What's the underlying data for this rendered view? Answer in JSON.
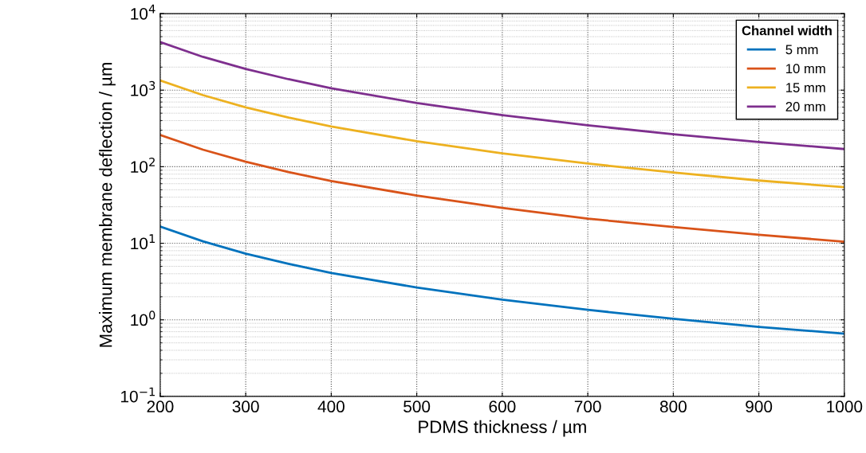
{
  "chart_data": {
    "type": "line",
    "xlabel": "PDMS thickness / µm",
    "ylabel": "Maximum membrane deflection / µm",
    "legend_title": "Channel width",
    "legend": "top right",
    "log": "y",
    "grid": true,
    "line_style": "solid",
    "x": [
      200,
      250,
      300,
      350,
      400,
      500,
      600,
      700,
      800,
      900,
      1000
    ],
    "xlim": [
      200,
      1000
    ],
    "xticks": [
      200,
      300,
      400,
      500,
      600,
      700,
      800,
      900,
      1000
    ],
    "ylim": [
      0.1,
      10000
    ],
    "yticks": [
      {
        "value": 0.1,
        "label": "10$^{−1}$"
      },
      {
        "value": 1,
        "label": "10$^{0}$"
      },
      {
        "value": 10,
        "label": "10$^{1}$"
      },
      {
        "value": 100,
        "label": "10$^{2}$"
      },
      {
        "value": 1000,
        "label": "10$^{3}$"
      },
      {
        "value": 10000,
        "label": "10$^{4}$"
      }
    ],
    "series": [
      {
        "name": "5 mm",
        "color": "#0072bd",
        "values": [
          16.5,
          10.6,
          7.3,
          5.4,
          4.1,
          2.64,
          1.83,
          1.35,
          1.03,
          0.81,
          0.66
        ]
      },
      {
        "name": "10 mm",
        "color": "#d95319",
        "values": [
          260,
          167,
          116,
          85,
          65,
          42,
          29,
          21,
          16.3,
          12.9,
          10.5
        ]
      },
      {
        "name": "15 mm",
        "color": "#edb120",
        "values": [
          1340,
          860,
          595,
          438,
          335,
          215,
          149,
          110,
          84,
          66,
          54
        ]
      },
      {
        "name": "20 mm",
        "color": "#7e2f8e",
        "values": [
          4250,
          2720,
          1890,
          1390,
          1060,
          680,
          472,
          347,
          266,
          210,
          170
        ]
      }
    ]
  }
}
